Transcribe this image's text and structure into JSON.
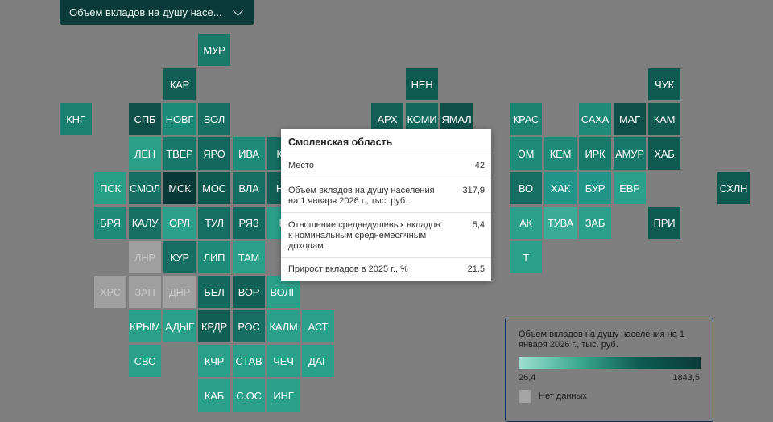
{
  "dropdown": {
    "label": "Объем вкладов на душу насе..."
  },
  "tiles": [
    {
      "label": "МУР",
      "color": "#1a7a6a",
      "dim": false
    },
    {
      "label": "КАР",
      "color": "#115f55",
      "dim": false
    },
    {
      "label": "НЕН",
      "color": "#0e5a50",
      "dim": false
    },
    {
      "label": "ЧУК",
      "color": "#0f5a50",
      "dim": false
    },
    {
      "label": "КНГ",
      "color": "#1a8070",
      "dim": false
    },
    {
      "label": "СПБ",
      "color": "#0e4f48",
      "dim": false
    },
    {
      "label": "НОВГ",
      "color": "#1c8a78",
      "dim": false
    },
    {
      "label": "ВОЛ",
      "color": "#176e62",
      "dim": false
    },
    {
      "label": "АРХ",
      "color": "#145f56",
      "dim": false
    },
    {
      "label": "КОМИ",
      "color": "#14695e",
      "dim": false
    },
    {
      "label": "ЯМАЛ",
      "color": "#0e4f48",
      "dim": false
    },
    {
      "label": "КРАС",
      "color": "#1c8370",
      "dim": false
    },
    {
      "label": "САХА",
      "color": "#1f8a78",
      "dim": false
    },
    {
      "label": "МАГ",
      "color": "#0e4f48",
      "dim": false
    },
    {
      "label": "КАМ",
      "color": "#105a50",
      "dim": false
    },
    {
      "label": "ЛЕН",
      "color": "#2aa088",
      "dim": false
    },
    {
      "label": "ТВЕР",
      "color": "#18786a",
      "dim": false
    },
    {
      "label": "ЯРО",
      "color": "#14695e",
      "dim": false
    },
    {
      "label": "ИВА",
      "color": "#1e8a78",
      "dim": false
    },
    {
      "label": "КО",
      "color": "#166e62",
      "dim": false
    },
    {
      "label": "ОМ",
      "color": "#1e8a78",
      "dim": false
    },
    {
      "label": "КЕМ",
      "color": "#1f8a78",
      "dim": false
    },
    {
      "label": "ИРК",
      "color": "#1a7a6a",
      "dim": false
    },
    {
      "label": "АМУР",
      "color": "#17786a",
      "dim": false
    },
    {
      "label": "ХАБ",
      "color": "#0f5a50",
      "dim": false
    },
    {
      "label": "ПСК",
      "color": "#28a088",
      "dim": false
    },
    {
      "label": "СМОЛ",
      "color": "#166e62",
      "dim": false
    },
    {
      "label": "МСК",
      "color": "#0a3a38",
      "dim": false
    },
    {
      "label": "МОС",
      "color": "#0f5a50",
      "dim": false
    },
    {
      "label": "ВЛА",
      "color": "#166e62",
      "dim": false
    },
    {
      "label": "НИ",
      "color": "#125f56",
      "dim": false
    },
    {
      "label": "ВО",
      "color": "#166e62",
      "dim": false
    },
    {
      "label": "ХАК",
      "color": "#22958a",
      "dim": false
    },
    {
      "label": "БУР",
      "color": "#22958a",
      "dim": false
    },
    {
      "label": "ЕВР",
      "color": "#2aa08a",
      "dim": false
    },
    {
      "label": "СХЛН",
      "color": "#0e5a50",
      "dim": false
    },
    {
      "label": "БРЯ",
      "color": "#1e8a78",
      "dim": false
    },
    {
      "label": "КАЛУ",
      "color": "#166e62",
      "dim": false
    },
    {
      "label": "ОРЛ",
      "color": "#2aa08a",
      "dim": false
    },
    {
      "label": "ТУЛ",
      "color": "#166e62",
      "dim": false
    },
    {
      "label": "РЯЗ",
      "color": "#14695e",
      "dim": false
    },
    {
      "label": "М",
      "color": "#2aa08a",
      "dim": false
    },
    {
      "label": "АК",
      "color": "#2aa08a",
      "dim": false
    },
    {
      "label": "ТУВА",
      "color": "#3aab96",
      "dim": false
    },
    {
      "label": "ЗАБ",
      "color": "#2aa08a",
      "dim": false
    },
    {
      "label": "ПРИ",
      "color": "#0f5a50",
      "dim": false
    },
    {
      "label": "ЛНР",
      "color": "#9f9f9f",
      "dim": true
    },
    {
      "label": "КУР",
      "color": "#166e62",
      "dim": false
    },
    {
      "label": "ЛИП",
      "color": "#1e8a78",
      "dim": false
    },
    {
      "label": "ТАМ",
      "color": "#2aa08a",
      "dim": false
    },
    {
      "label": "Т",
      "color": "#2aa08a",
      "dim": false
    },
    {
      "label": "ХРС",
      "color": "#9f9f9f",
      "dim": true
    },
    {
      "label": "ЗАП",
      "color": "#9f9f9f",
      "dim": true
    },
    {
      "label": "ДНР",
      "color": "#9f9f9f",
      "dim": true
    },
    {
      "label": "БЕЛ",
      "color": "#14695e",
      "dim": false
    },
    {
      "label": "ВОР",
      "color": "#125f56",
      "dim": false
    },
    {
      "label": "ВОЛГ",
      "color": "#2aa08a",
      "dim": false
    },
    {
      "label": "КРЫМ",
      "color": "#2aa08a",
      "dim": false
    },
    {
      "label": "АДЫГ",
      "color": "#2aa08a",
      "dim": false
    },
    {
      "label": "КРДР",
      "color": "#125f56",
      "dim": false
    },
    {
      "label": "РОС",
      "color": "#166e62",
      "dim": false
    },
    {
      "label": "КАЛМ",
      "color": "#2aa08a",
      "dim": false
    },
    {
      "label": "АСТ",
      "color": "#2aa08a",
      "dim": false
    },
    {
      "label": "СВС",
      "color": "#2aa08a",
      "dim": false
    },
    {
      "label": "КЧР",
      "color": "#2aa08a",
      "dim": false
    },
    {
      "label": "СТАВ",
      "color": "#2aa08a",
      "dim": false
    },
    {
      "label": "ЧЕЧ",
      "color": "#2aa08a",
      "dim": false
    },
    {
      "label": "ДАГ",
      "color": "#2aa08a",
      "dim": false
    },
    {
      "label": "КАБ",
      "color": "#2aa08a",
      "dim": false
    },
    {
      "label": "С.ОС",
      "color": "#2aa08a",
      "dim": false
    },
    {
      "label": "ИНГ",
      "color": "#2aa08a",
      "dim": false
    }
  ],
  "tooltip": {
    "title": "Смоленская область",
    "rows": [
      {
        "label": "Место",
        "value": "42"
      },
      {
        "label": "Объем вкладов на душу населения на 1 января 2026 г., тыс. руб.",
        "value": "317,9"
      },
      {
        "label": "Отношение среднедушевых вкладов к номинальным среднемесячным доходам",
        "value": "5,4"
      },
      {
        "label": "Прирост вкладов в 2025 г., %",
        "value": "21,5"
      }
    ]
  },
  "legend": {
    "title": "Объем вкладов на душу населения на 1 января 2026 г., тыс. руб.",
    "min": "26,4",
    "max": "1843,5",
    "no_data": "Нет данных",
    "no_data_color": "#a4a4a4"
  }
}
